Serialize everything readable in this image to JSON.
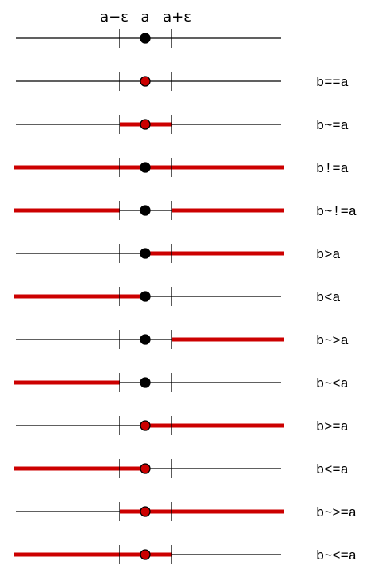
{
  "header": {
    "left": "a−ε",
    "center": "a",
    "right": "a+ε"
  },
  "colors": {
    "line": "#000000",
    "highlight": "#cc0000",
    "point_default": "#000000",
    "point_included": "#cc0000"
  },
  "rows": [
    {
      "label": "",
      "point_included": false,
      "segments": []
    },
    {
      "label": "b==a",
      "point_included": true,
      "segments": []
    },
    {
      "label": "b~=a",
      "point_included": true,
      "segments": [
        [
          "left_eps",
          "right_eps"
        ]
      ]
    },
    {
      "label": "b!=a",
      "point_included": false,
      "segments": [
        [
          "-inf",
          "+inf"
        ]
      ]
    },
    {
      "label": "b~!=a",
      "point_included": false,
      "segments": [
        [
          "-inf",
          "left_eps"
        ],
        [
          "right_eps",
          "+inf"
        ]
      ]
    },
    {
      "label": "b>a",
      "point_included": false,
      "segments": [
        [
          "a",
          "+inf"
        ]
      ]
    },
    {
      "label": "b<a",
      "point_included": false,
      "segments": [
        [
          "-inf",
          "a"
        ]
      ]
    },
    {
      "label": "b~>a",
      "point_included": false,
      "segments": [
        [
          "right_eps",
          "+inf"
        ]
      ]
    },
    {
      "label": "b~<a",
      "point_included": false,
      "segments": [
        [
          "-inf",
          "left_eps"
        ]
      ]
    },
    {
      "label": "b>=a",
      "point_included": true,
      "segments": [
        [
          "a",
          "+inf"
        ]
      ]
    },
    {
      "label": "b<=a",
      "point_included": true,
      "segments": [
        [
          "-inf",
          "a"
        ]
      ]
    },
    {
      "label": "b~>=a",
      "point_included": true,
      "segments": [
        [
          "left_eps",
          "+inf"
        ]
      ]
    },
    {
      "label": "b~<=a",
      "point_included": true,
      "segments": [
        [
          "-inf",
          "right_eps"
        ]
      ]
    }
  ]
}
